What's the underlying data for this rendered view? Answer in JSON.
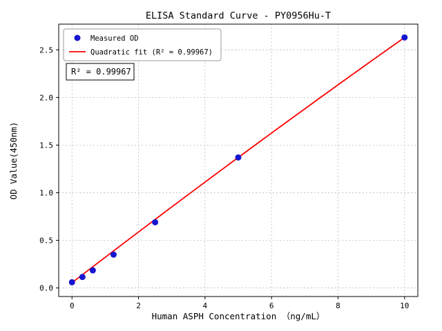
{
  "chart_data": {
    "type": "scatter",
    "title": "ELISA Standard Curve - PY0956Hu-T",
    "xlabel": "Human ASPH Concentration （ng/mL）",
    "ylabel": "OD Value(450nm)",
    "xlim": [
      -0.4,
      10.4
    ],
    "ylim": [
      -0.09,
      2.77
    ],
    "xticks": [
      0,
      2,
      4,
      6,
      8,
      10
    ],
    "xtick_labels": [
      "0",
      "2",
      "4",
      "6",
      "8",
      "10"
    ],
    "yticks": [
      0.0,
      0.5,
      1.0,
      1.5,
      2.0,
      2.5
    ],
    "ytick_labels": [
      "0.0",
      "0.5",
      "1.0",
      "1.5",
      "2.0",
      "2.5"
    ],
    "grid": true,
    "grid_color": "#bbbbbb",
    "legend_position": "upper left",
    "series": [
      {
        "name": "Measured OD",
        "type": "scatter",
        "color": "#1515d0",
        "x": [
          0,
          0.313,
          0.625,
          1.25,
          2.5,
          5,
          10
        ],
        "y": [
          0.06,
          0.115,
          0.185,
          0.35,
          0.69,
          1.37,
          2.63
        ]
      },
      {
        "name": "Quadratic fit (R² = 0.99967)",
        "type": "line",
        "color": "#ff0000",
        "fit_coefficients": {
          "a": -0.0011,
          "b": 0.2685,
          "c": 0.055
        },
        "x_range": [
          0,
          10
        ]
      }
    ],
    "annotation": "R² = 0.99967",
    "r_squared": "0.99967"
  }
}
